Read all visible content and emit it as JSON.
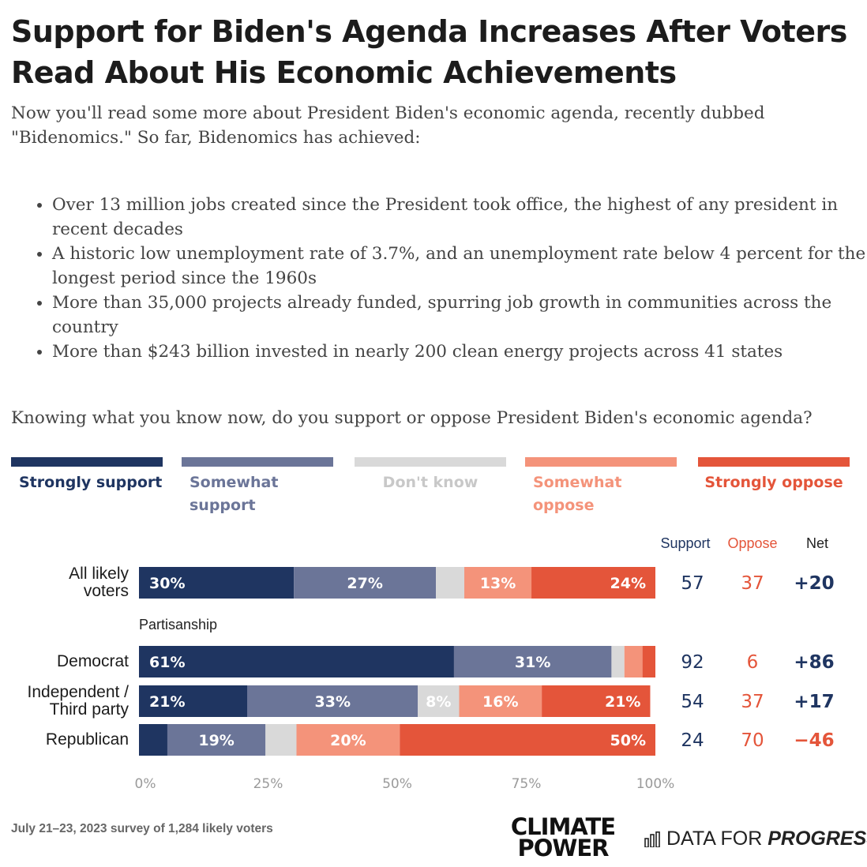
{
  "title": "Support for Biden's Agenda Increases After Voters Read About His Economic Achievements",
  "intro": "Now you'll read some more about President Biden's economic agenda, recently dubbed \"Bidenomics.\" So far, Bidenomics has achieved:",
  "bullets": [
    "Over 13 million jobs created since the President took office, the highest of any president in recent decades",
    "A historic low unemployment rate of 3.7%, and an unemployment rate below 4 percent for the longest period since the 1960s",
    "More than 35,000 projects already funded, spurring job growth in communities across the country",
    "More than $243 billion invested in nearly 200 clean energy projects across 41 states"
  ],
  "question": "Knowing what you know now, do you support or oppose President Biden's economic agenda?",
  "legend": [
    {
      "label": "Strongly support",
      "color": "#1f3561"
    },
    {
      "label": "Somewhat support",
      "color": "#6b7598"
    },
    {
      "label": "Don't know",
      "color": "#d9d9d9"
    },
    {
      "label": "Somewhat oppose",
      "color": "#f4937a"
    },
    {
      "label": "Strongly oppose",
      "color": "#e4553a"
    }
  ],
  "columns": {
    "support": "Support",
    "oppose": "Oppose",
    "net": "Net"
  },
  "section_label": "Partisanship",
  "chart_data": {
    "type": "bar",
    "orientation": "horizontal",
    "stacked": true,
    "xlim": [
      0,
      100
    ],
    "x_ticks": [
      "0%",
      "25%",
      "50%",
      "75%",
      "100%"
    ],
    "series_names": [
      "Strongly support",
      "Somewhat support",
      "Don't know",
      "Somewhat oppose",
      "Strongly oppose"
    ],
    "rows": [
      {
        "label": "All likely voters",
        "values": [
          30,
          27.5,
          5.5,
          13,
          24
        ],
        "labels": [
          "30%",
          "27%",
          "",
          "13%",
          "24%"
        ],
        "support": "57",
        "oppose": "37",
        "net": "+20"
      },
      {
        "label": "Democrat",
        "values": [
          61,
          30.5,
          2.5,
          3.5,
          2.5
        ],
        "labels": [
          "61%",
          "31%",
          "",
          "",
          ""
        ],
        "support": "92",
        "oppose": "6",
        "net": "+86"
      },
      {
        "label": "Independent / Third party",
        "values": [
          21,
          33,
          8,
          16,
          21
        ],
        "labels": [
          "21%",
          "33%",
          "8%",
          "16%",
          "21%"
        ],
        "support": "54",
        "oppose": "37",
        "net": "+17"
      },
      {
        "label": "Republican",
        "values": [
          5.5,
          19,
          6,
          20,
          49.5
        ],
        "labels": [
          "",
          "19%",
          "",
          "20%",
          "50%"
        ],
        "support": "24",
        "oppose": "70",
        "net": "−46"
      }
    ]
  },
  "footer": "July 21–23, 2023 survey of 1,284 likely voters",
  "logo_climate_power": "CLIMATE POWER",
  "logo_dfp_1": "DATA FOR ",
  "logo_dfp_2": "PROGRESS"
}
